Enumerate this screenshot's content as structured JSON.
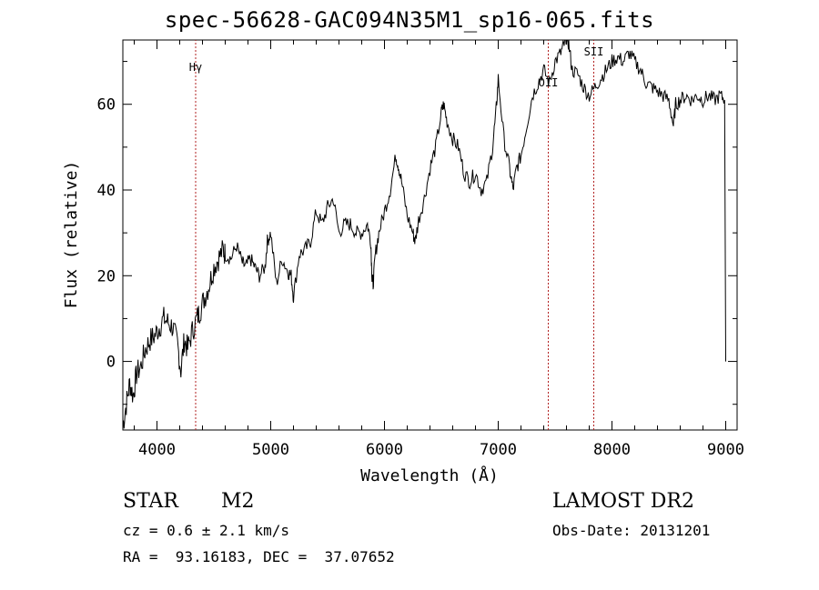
{
  "title": "spec-56628-GAC094N35M1_sp16-065.fits",
  "info": {
    "class": "STAR",
    "subclass": "M2",
    "survey": "LAMOST DR2",
    "cz": "cz = 0.6 ± 2.1 km/s",
    "obs_date": "Obs-Date: 20131201",
    "coords": "RA =  93.16183, DEC =  37.07652"
  },
  "chart_data": {
    "type": "line",
    "title": "spec-56628-GAC094N35M1_sp16-065.fits",
    "xlabel": "Wavelength (Å)",
    "ylabel": "Flux (relative)",
    "xlim": [
      3700,
      9100
    ],
    "ylim": [
      -16,
      75
    ],
    "xticks": [
      4000,
      5000,
      6000,
      7000,
      8000,
      9000
    ],
    "yticks": [
      0,
      20,
      40,
      60
    ],
    "grid": false,
    "line_color": "#000000",
    "line_labels": [
      {
        "label": "Hγ",
        "x": 4340
      },
      {
        "label": "OII",
        "x": 7440
      },
      {
        "label": "SII",
        "x": 7840
      }
    ],
    "line_marker_color": "#b22222",
    "series": [
      {
        "x": [
          3700,
          3730,
          3760,
          3790,
          3820,
          3860,
          3900,
          3940,
          3980,
          4020,
          4060,
          4100,
          4140,
          4180,
          4210,
          4240,
          4270,
          4310,
          4350,
          4380,
          4420,
          4460,
          4500,
          4540,
          4580,
          4600,
          4650,
          4700,
          4750,
          4780,
          4820,
          4860,
          4900,
          4950,
          4970,
          5000,
          5050,
          5100,
          5150,
          5180,
          5200,
          5250,
          5300,
          5350,
          5400,
          5450,
          5500,
          5550,
          5600,
          5650,
          5700,
          5750,
          5800,
          5850,
          5880,
          5890,
          5900,
          5920,
          5950,
          6000,
          6050,
          6100,
          6120,
          6150,
          6200,
          6250,
          6270,
          6300,
          6350,
          6400,
          6450,
          6500,
          6520,
          6550,
          6600,
          6650,
          6700,
          6750,
          6800,
          6850,
          6900,
          6950,
          6980,
          7000,
          7050,
          7100,
          7130,
          7160,
          7200,
          7250,
          7300,
          7350,
          7400,
          7450,
          7500,
          7550,
          7580,
          7600,
          7620,
          7650,
          7700,
          7750,
          7800,
          7850,
          7900,
          7950,
          8000,
          8050,
          8100,
          8150,
          8200,
          8250,
          8300,
          8350,
          8400,
          8450,
          8500,
          8540,
          8560,
          8600,
          8650,
          8700,
          8750,
          8800,
          8850,
          8900,
          8950,
          8990,
          9000
        ],
        "y": [
          -15,
          -10,
          -5,
          -8,
          -3,
          -1,
          3,
          5,
          6,
          8,
          10,
          9,
          8,
          4,
          -2,
          5,
          3,
          7,
          10,
          12,
          15,
          18,
          22,
          24,
          26,
          25,
          24,
          27,
          23,
          22,
          24,
          22,
          20,
          22,
          28,
          30,
          18,
          24,
          21,
          20,
          15,
          25,
          26,
          28,
          35,
          32,
          36,
          38,
          30,
          32,
          32,
          30,
          30,
          32,
          28,
          20,
          18,
          25,
          30,
          35,
          40,
          48,
          46,
          42,
          34,
          30,
          28,
          33,
          38,
          45,
          50,
          58,
          60,
          56,
          52,
          50,
          44,
          42,
          44,
          40,
          42,
          50,
          58,
          66,
          52,
          45,
          40,
          45,
          48,
          55,
          62,
          65,
          68,
          65,
          70,
          72,
          74,
          76,
          74,
          68,
          67,
          64,
          62,
          64,
          66,
          68,
          70,
          71,
          70,
          72,
          70,
          68,
          65,
          64,
          63,
          62,
          61,
          55,
          60,
          61,
          62,
          61,
          62,
          61,
          62,
          61,
          62,
          61,
          0
        ]
      }
    ]
  }
}
